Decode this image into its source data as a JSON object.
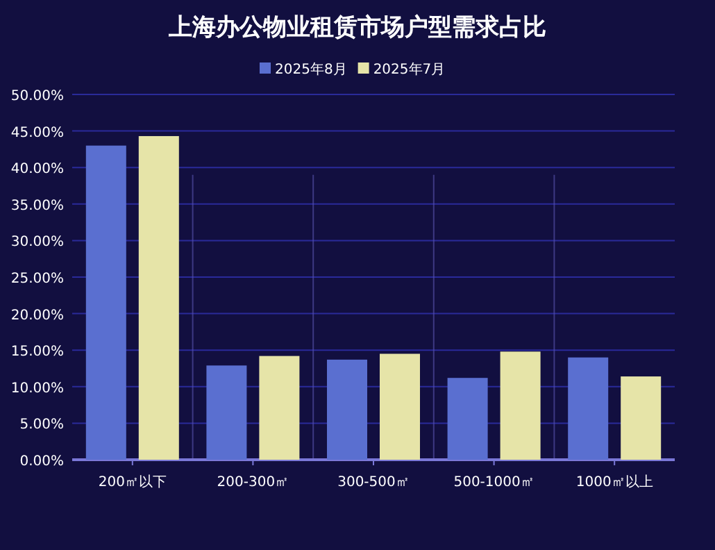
{
  "chart_data": {
    "type": "bar",
    "title": "上海办公物业租赁市场户型需求占比",
    "categories": [
      "200㎡以下",
      "200-300㎡",
      "300-500㎡",
      "500-1000㎡",
      "1000㎡以上"
    ],
    "series": [
      {
        "name": "2025年8月",
        "color": "#5a6fd0",
        "values": [
          43.0,
          12.9,
          13.7,
          11.2,
          14.0
        ]
      },
      {
        "name": "2025年7月",
        "color": "#e6e4a8",
        "values": [
          44.3,
          14.2,
          14.5,
          14.8,
          11.4
        ]
      }
    ],
    "ylim": [
      0,
      50
    ],
    "yticks": [
      {
        "value": 0,
        "label": "0.00%"
      },
      {
        "value": 5,
        "label": "5.00%"
      },
      {
        "value": 10,
        "label": "10.00%"
      },
      {
        "value": 15,
        "label": "15.00%"
      },
      {
        "value": 20,
        "label": "20.00%"
      },
      {
        "value": 25,
        "label": "25.00%"
      },
      {
        "value": 30,
        "label": "30.00%"
      },
      {
        "value": 35,
        "label": "35.00%"
      },
      {
        "value": 40,
        "label": "40.00%"
      },
      {
        "value": 45,
        "label": "45.00%"
      },
      {
        "value": 50,
        "label": "50.00%"
      }
    ],
    "grid": "y",
    "legend": "top"
  }
}
